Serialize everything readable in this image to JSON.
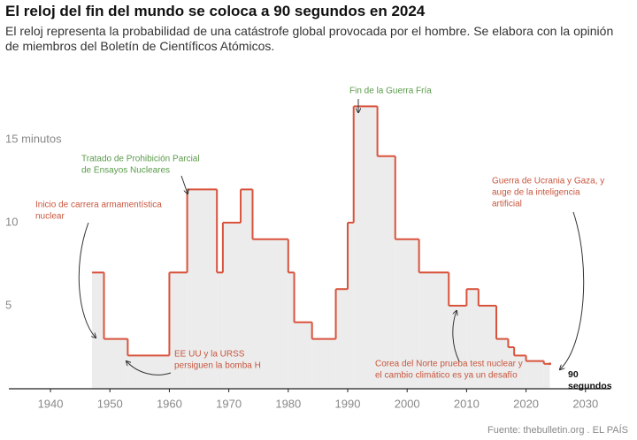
{
  "chart_data": {
    "type": "step",
    "title": "El reloj del fin del mundo se coloca a 90 segundos en 2024",
    "subtitle": "El reloj representa la probabilidad de una catástrofe global provocada por el hombre. Se elabora con la opinión de miembros del Boletín de Científicos Atómicos.",
    "source": "Fuente: thebulletin.org . EL PAÍS",
    "x": [
      1947,
      1949,
      1953,
      1960,
      1963,
      1968,
      1969,
      1972,
      1974,
      1980,
      1981,
      1984,
      1988,
      1990,
      1991,
      1995,
      1998,
      2002,
      2007,
      2010,
      2012,
      2015,
      2017,
      2018,
      2020,
      2023,
      2024
    ],
    "series": [
      {
        "color": "#d9533c",
        "fill": "#ececec",
        "values": [
          7,
          3,
          2,
          7,
          12,
          7,
          10,
          12,
          9,
          7,
          4,
          3,
          6,
          10,
          17,
          14,
          9,
          7,
          5,
          6,
          5,
          3,
          2.5,
          2,
          1.67,
          1.5,
          1.5
        ]
      }
    ],
    "xlim": [
      1933,
      2034.2
    ],
    "ylim": [
      0,
      19.5
    ],
    "xticks": [
      1940,
      1950,
      1960,
      1970,
      1980,
      1990,
      2000,
      2010,
      2020,
      2030
    ],
    "yticks": [
      5,
      10,
      {
        "value": 15,
        "label": "15 minutos"
      }
    ],
    "grid": false,
    "annotations": [
      {
        "lines": [
          "Inicio de carrera armamentística",
          "nuclear"
        ],
        "color": "#c8553d"
      },
      {
        "lines": [
          "Tratado de Prohibición Parcial",
          "de Ensayos Nucleares"
        ],
        "color": "#5a9a4a"
      },
      {
        "lines": [
          "Fin de la Guerra Fría"
        ],
        "color": "#5a9a4a"
      },
      {
        "lines": [
          "Guerra de Ucrania y Gaza, y",
          "auge de la inteligencia",
          "artificial"
        ],
        "color": "#c8553d"
      },
      {
        "lines": [
          "EE UU y la URSS",
          "persiguen la bomba H"
        ],
        "color": "#c8553d"
      },
      {
        "lines": [
          "Corea del Norte prueba test nuclear y",
          "el cambio climático es ya un desafío"
        ],
        "color": "#c8553d"
      },
      {
        "lines": [
          "90",
          "segundos"
        ],
        "color": "#111"
      }
    ]
  }
}
